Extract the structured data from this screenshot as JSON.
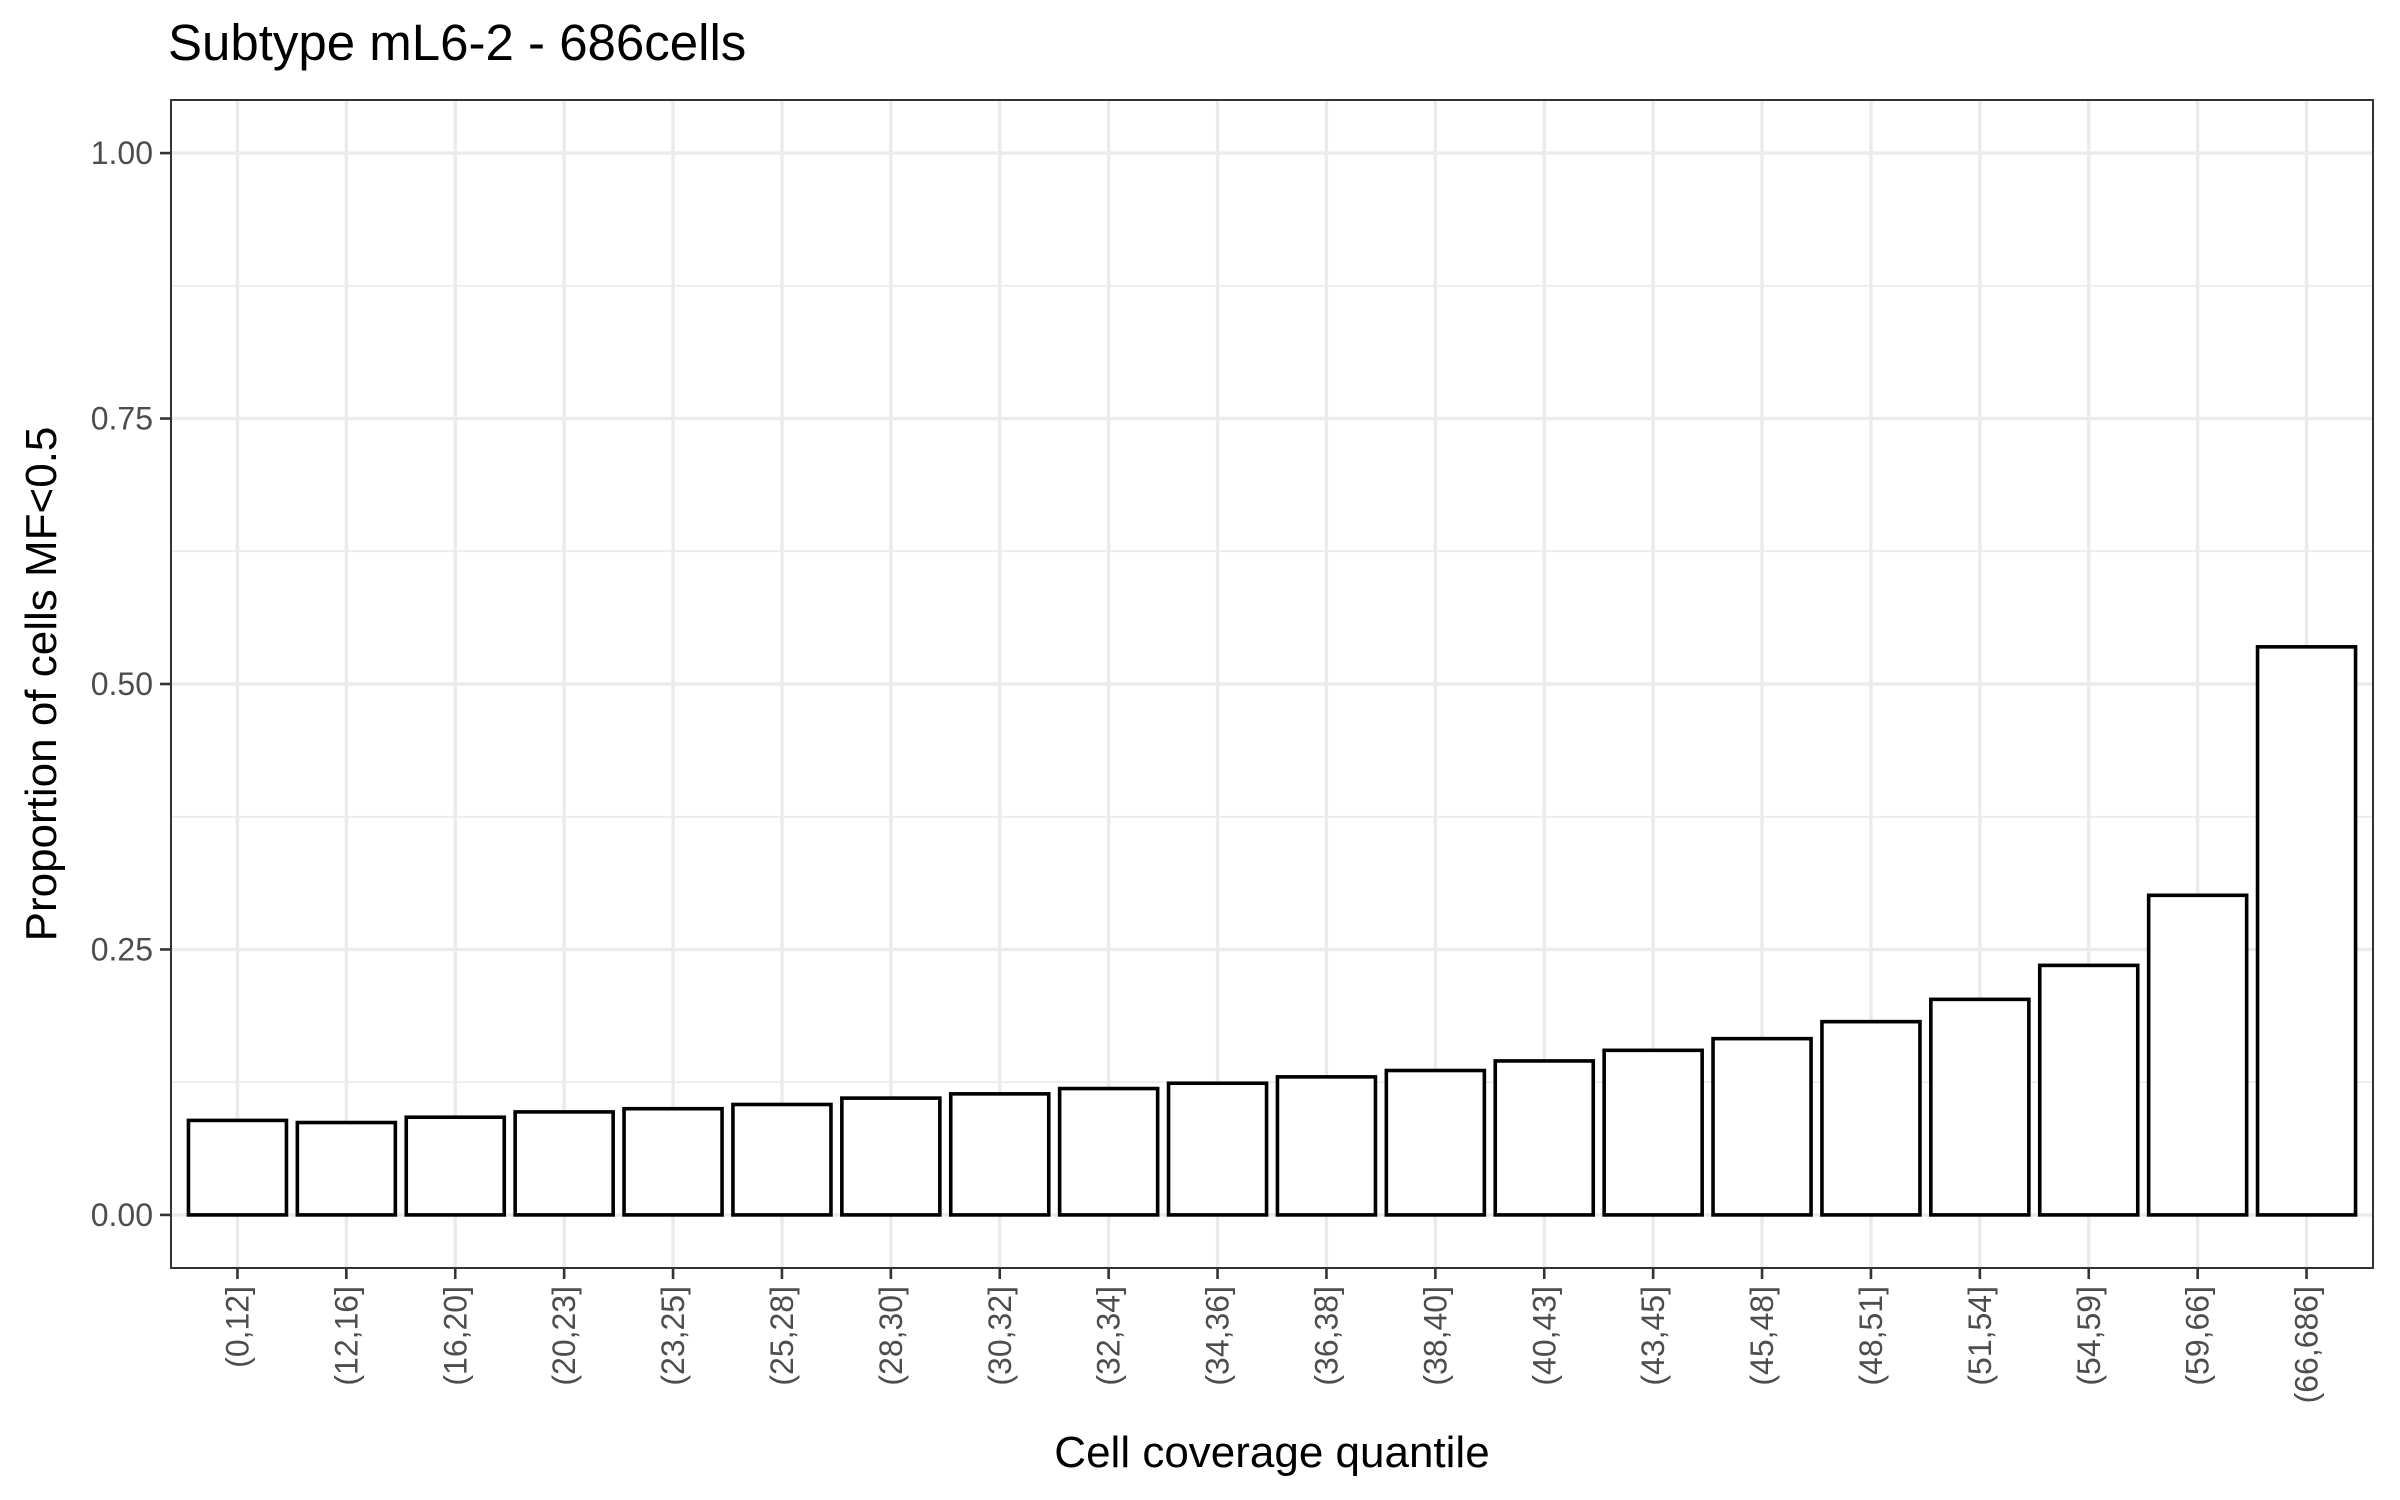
{
  "chart_data": {
    "type": "bar",
    "title": "Subtype mL6-2 - 686cells",
    "xlabel": "Cell coverage quantile",
    "ylabel": "Proportion of cells MF<0.5",
    "ylim": [
      -0.05,
      1.05
    ],
    "yticks": [
      0,
      0.25,
      0.5,
      0.75,
      1
    ],
    "ytick_labels": [
      "0.00",
      "0.25",
      "0.50",
      "0.75",
      "1.00"
    ],
    "grid": true,
    "legend": "none",
    "bar_fill": "#ffffff",
    "bar_stroke": "#000000",
    "categories": [
      "(0,12]",
      "(12,16]",
      "(16,20]",
      "(20,23]",
      "(23,25]",
      "(25,28]",
      "(28,30]",
      "(30,32]",
      "(32,34]",
      "(34,36]",
      "(36,38]",
      "(38,40]",
      "(40,43]",
      "(43,45]",
      "(45,48]",
      "(48,51]",
      "(51,54]",
      "(54,59]",
      "(59,66]",
      "(66,686]"
    ],
    "values": [
      0.089,
      0.087,
      0.092,
      0.097,
      0.1,
      0.104,
      0.11,
      0.114,
      0.119,
      0.124,
      0.13,
      0.136,
      0.145,
      0.155,
      0.166,
      0.182,
      0.203,
      0.235,
      0.301,
      0.535
    ]
  }
}
